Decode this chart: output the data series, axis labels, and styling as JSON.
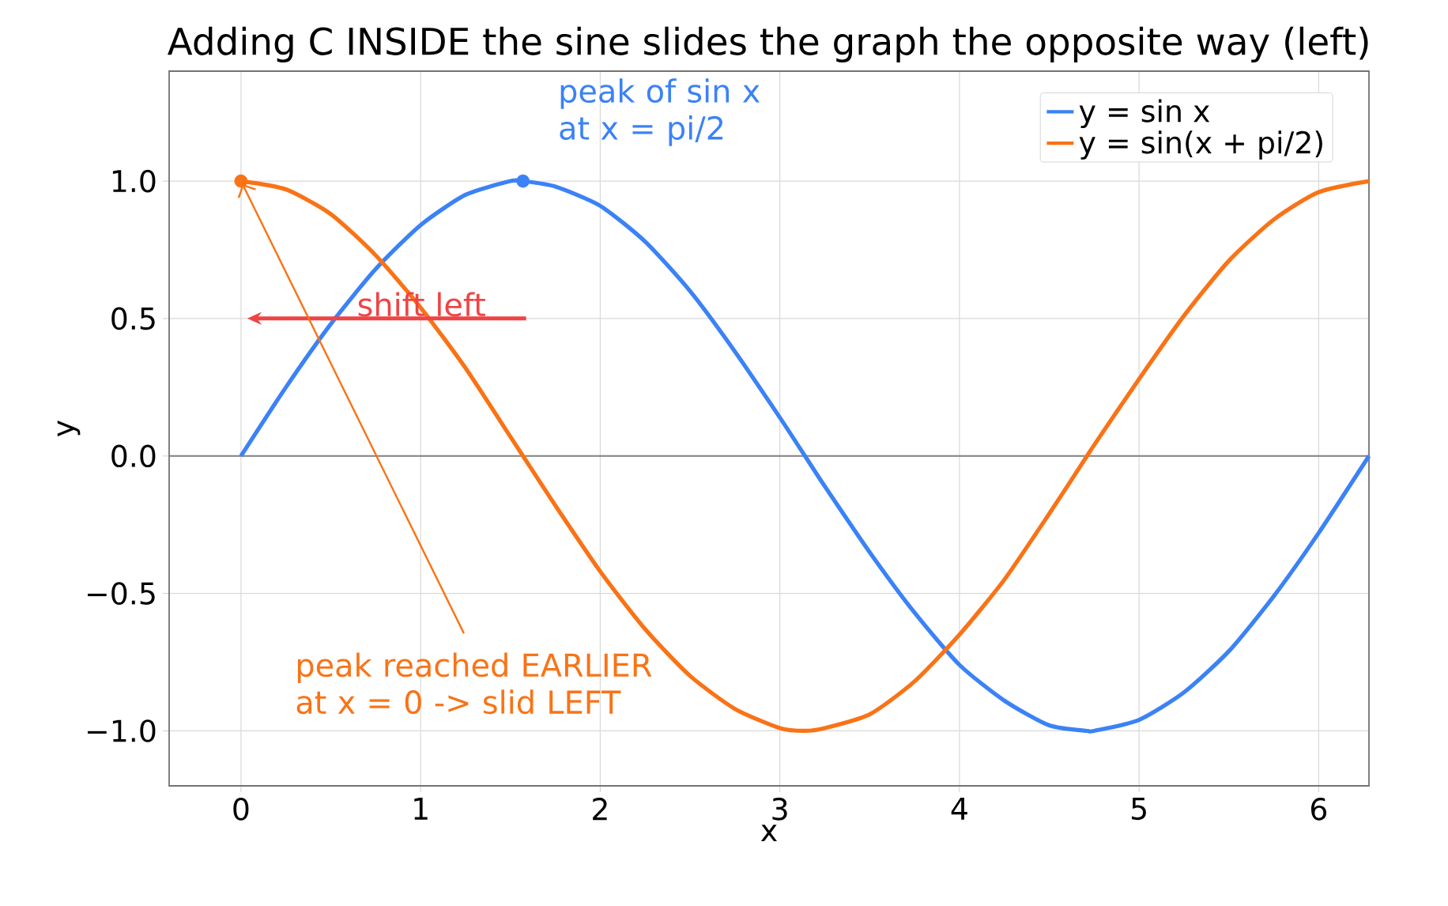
{
  "chart_data": {
    "type": "line",
    "title": "Adding C INSIDE the sine slides the graph the opposite way (left)",
    "xlabel": "x",
    "ylabel": "y",
    "x": [
      0,
      0.25,
      0.5,
      0.75,
      1,
      1.25,
      1.5,
      1.57,
      1.75,
      2,
      2.25,
      2.5,
      2.75,
      3,
      3.14,
      3.25,
      3.5,
      3.75,
      4,
      4.25,
      4.5,
      4.71,
      4.75,
      5,
      5.25,
      5.5,
      5.75,
      6,
      6.28
    ],
    "series": [
      {
        "name": "y = sin x",
        "color": "#3b82f6",
        "values": [
          0,
          0.25,
          0.48,
          0.68,
          0.84,
          0.95,
          1.0,
          1.0,
          0.98,
          0.91,
          0.78,
          0.6,
          0.38,
          0.14,
          0.0,
          -0.11,
          -0.35,
          -0.57,
          -0.76,
          -0.89,
          -0.98,
          -1.0,
          -1.0,
          -0.96,
          -0.86,
          -0.71,
          -0.51,
          -0.28,
          0.0
        ]
      },
      {
        "name": "y = sin(x + pi/2)",
        "color": "#f97316",
        "values": [
          1,
          0.97,
          0.88,
          0.73,
          0.54,
          0.32,
          0.07,
          0.0,
          -0.18,
          -0.42,
          -0.63,
          -0.8,
          -0.92,
          -0.99,
          -1.0,
          -0.99,
          -0.94,
          -0.82,
          -0.65,
          -0.45,
          -0.21,
          0.0,
          0.04,
          0.28,
          0.51,
          0.71,
          0.86,
          0.96,
          1.0
        ]
      },
      {
        "type": "scatter",
        "marker": "circle",
        "color": "#3b82f6",
        "x": [
          1.57
        ],
        "values": [
          1.0
        ]
      },
      {
        "type": "scatter",
        "marker": "circle",
        "color": "#f97316",
        "x": [
          0
        ],
        "values": [
          1.0
        ]
      }
    ],
    "xlim": [
      -0.4,
      6.28
    ],
    "ylim": [
      -1.2,
      1.4
    ],
    "xticks": [
      0,
      1,
      2,
      3,
      4,
      5,
      6
    ],
    "yticks": [
      {
        "value": -1.0,
        "label": "−1.0"
      },
      {
        "value": -0.5,
        "label": "−0.5"
      },
      {
        "value": 0,
        "label": "0.0"
      },
      {
        "value": 0.5,
        "label": "0.5"
      },
      {
        "value": 1.0,
        "label": "1.0"
      }
    ],
    "ref_lines": [
      {
        "axis": "y",
        "value": 0,
        "color": "#808080"
      }
    ],
    "annotations": [
      {
        "text": "peak of sin x at x = pi/2",
        "x": 1.57,
        "y": 1.0
      },
      "shift left",
      {
        "text": "peak reached EARLIER at x = 0 -> slid LEFT",
        "x": 0,
        "y": 1.0
      }
    ],
    "grid": true,
    "legend": "top right",
    "marker": "none",
    "line_style": "solid"
  }
}
